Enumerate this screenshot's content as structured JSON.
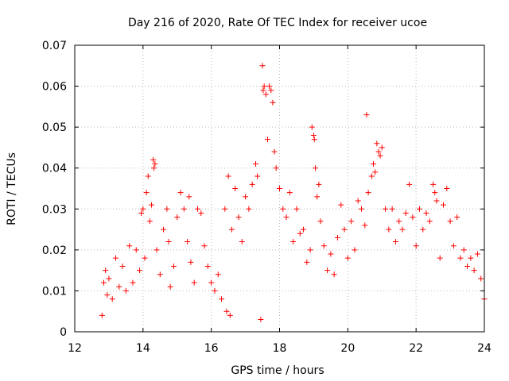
{
  "chart_data": {
    "type": "scatter",
    "title": "Day 216 of 2020, Rate Of TEC Index for receiver ucoe",
    "xlabel": "GPS time / hours",
    "ylabel": "ROTI / TECUs",
    "xlim": [
      12,
      24
    ],
    "ylim": [
      0,
      0.07
    ],
    "x_ticks": [
      12,
      14,
      16,
      18,
      20,
      22,
      24
    ],
    "y_ticks": [
      0,
      0.01,
      0.02,
      0.03,
      0.04,
      0.05,
      0.06,
      0.07
    ],
    "x_tick_labels": [
      "12",
      "14",
      "16",
      "18",
      "20",
      "22",
      "24"
    ],
    "y_tick_labels": [
      "0",
      "0.01",
      "0.02",
      "0.03",
      "0.04",
      "0.05",
      "0.06",
      "0.07"
    ],
    "grid": true,
    "marker": "+",
    "series": [
      {
        "name": "ROTI",
        "color": "#ff0000",
        "points": [
          [
            12.8,
            0.004
          ],
          [
            12.85,
            0.012
          ],
          [
            12.9,
            0.015
          ],
          [
            12.95,
            0.009
          ],
          [
            13.0,
            0.013
          ],
          [
            13.1,
            0.008
          ],
          [
            13.2,
            0.018
          ],
          [
            13.3,
            0.011
          ],
          [
            13.4,
            0.016
          ],
          [
            13.5,
            0.01
          ],
          [
            13.6,
            0.021
          ],
          [
            13.7,
            0.012
          ],
          [
            13.8,
            0.02
          ],
          [
            13.9,
            0.015
          ],
          [
            13.95,
            0.029
          ],
          [
            14.0,
            0.03
          ],
          [
            14.05,
            0.018
          ],
          [
            14.1,
            0.034
          ],
          [
            14.15,
            0.038
          ],
          [
            14.2,
            0.027
          ],
          [
            14.25,
            0.031
          ],
          [
            14.3,
            0.042
          ],
          [
            14.32,
            0.04
          ],
          [
            14.35,
            0.041
          ],
          [
            14.4,
            0.02
          ],
          [
            14.5,
            0.014
          ],
          [
            14.6,
            0.025
          ],
          [
            14.7,
            0.03
          ],
          [
            14.75,
            0.022
          ],
          [
            14.8,
            0.011
          ],
          [
            14.9,
            0.016
          ],
          [
            15.0,
            0.028
          ],
          [
            15.1,
            0.034
          ],
          [
            15.2,
            0.03
          ],
          [
            15.3,
            0.022
          ],
          [
            15.35,
            0.033
          ],
          [
            15.4,
            0.017
          ],
          [
            15.5,
            0.012
          ],
          [
            15.6,
            0.03
          ],
          [
            15.7,
            0.029
          ],
          [
            15.8,
            0.021
          ],
          [
            15.9,
            0.016
          ],
          [
            16.0,
            0.012
          ],
          [
            16.1,
            0.01
          ],
          [
            16.2,
            0.014
          ],
          [
            16.3,
            0.008
          ],
          [
            16.4,
            0.03
          ],
          [
            16.45,
            0.005
          ],
          [
            16.5,
            0.038
          ],
          [
            16.55,
            0.004
          ],
          [
            16.6,
            0.025
          ],
          [
            16.7,
            0.035
          ],
          [
            16.8,
            0.028
          ],
          [
            16.9,
            0.022
          ],
          [
            17.0,
            0.033
          ],
          [
            17.1,
            0.03
          ],
          [
            17.2,
            0.036
          ],
          [
            17.3,
            0.041
          ],
          [
            17.35,
            0.038
          ],
          [
            17.45,
            0.003
          ],
          [
            17.5,
            0.065
          ],
          [
            17.52,
            0.059
          ],
          [
            17.55,
            0.06
          ],
          [
            17.6,
            0.058
          ],
          [
            17.65,
            0.047
          ],
          [
            17.7,
            0.06
          ],
          [
            17.75,
            0.059
          ],
          [
            17.8,
            0.056
          ],
          [
            17.85,
            0.044
          ],
          [
            17.9,
            0.04
          ],
          [
            18.0,
            0.035
          ],
          [
            18.1,
            0.03
          ],
          [
            18.2,
            0.028
          ],
          [
            18.3,
            0.034
          ],
          [
            18.4,
            0.022
          ],
          [
            18.5,
            0.03
          ],
          [
            18.6,
            0.024
          ],
          [
            18.7,
            0.025
          ],
          [
            18.8,
            0.017
          ],
          [
            18.9,
            0.02
          ],
          [
            18.95,
            0.05
          ],
          [
            19.0,
            0.048
          ],
          [
            19.02,
            0.047
          ],
          [
            19.05,
            0.04
          ],
          [
            19.1,
            0.033
          ],
          [
            19.15,
            0.036
          ],
          [
            19.2,
            0.027
          ],
          [
            19.3,
            0.021
          ],
          [
            19.4,
            0.015
          ],
          [
            19.5,
            0.019
          ],
          [
            19.6,
            0.014
          ],
          [
            19.7,
            0.023
          ],
          [
            19.8,
            0.031
          ],
          [
            19.9,
            0.025
          ],
          [
            20.0,
            0.018
          ],
          [
            20.1,
            0.027
          ],
          [
            20.2,
            0.02
          ],
          [
            20.3,
            0.032
          ],
          [
            20.4,
            0.03
          ],
          [
            20.5,
            0.026
          ],
          [
            20.55,
            0.053
          ],
          [
            20.6,
            0.034
          ],
          [
            20.7,
            0.038
          ],
          [
            20.75,
            0.041
          ],
          [
            20.8,
            0.039
          ],
          [
            20.85,
            0.046
          ],
          [
            20.9,
            0.044
          ],
          [
            20.95,
            0.043
          ],
          [
            21.0,
            0.045
          ],
          [
            21.1,
            0.03
          ],
          [
            21.2,
            0.025
          ],
          [
            21.3,
            0.03
          ],
          [
            21.4,
            0.022
          ],
          [
            21.5,
            0.027
          ],
          [
            21.6,
            0.025
          ],
          [
            21.7,
            0.029
          ],
          [
            21.8,
            0.036
          ],
          [
            21.9,
            0.028
          ],
          [
            22.0,
            0.021
          ],
          [
            22.1,
            0.03
          ],
          [
            22.2,
            0.025
          ],
          [
            22.3,
            0.029
          ],
          [
            22.4,
            0.027
          ],
          [
            22.5,
            0.036
          ],
          [
            22.55,
            0.034
          ],
          [
            22.6,
            0.032
          ],
          [
            22.7,
            0.018
          ],
          [
            22.8,
            0.031
          ],
          [
            22.9,
            0.035
          ],
          [
            23.0,
            0.027
          ],
          [
            23.1,
            0.021
          ],
          [
            23.2,
            0.028
          ],
          [
            23.3,
            0.018
          ],
          [
            23.4,
            0.02
          ],
          [
            23.5,
            0.016
          ],
          [
            23.6,
            0.018
          ],
          [
            23.7,
            0.015
          ],
          [
            23.8,
            0.019
          ],
          [
            23.9,
            0.013
          ],
          [
            24.0,
            0.008
          ]
        ]
      }
    ]
  }
}
